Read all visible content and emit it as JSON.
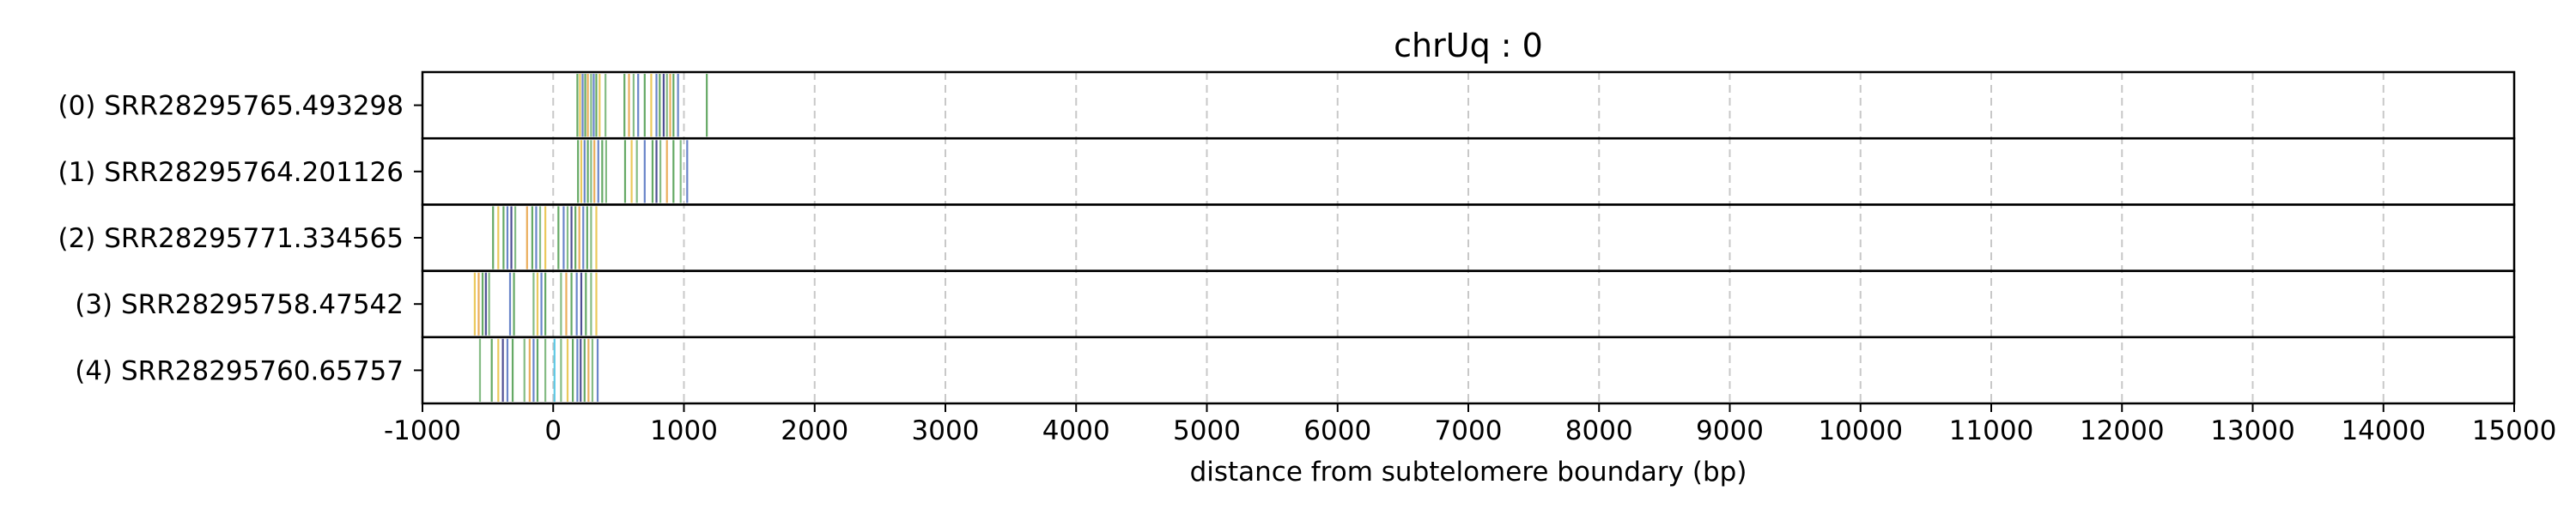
{
  "chart_data": {
    "type": "strip",
    "title": "chrUq : 0",
    "xlabel": "distance from subtelomere boundary (bp)",
    "ylabel": "",
    "xlim": [
      -1000,
      15000
    ],
    "xticks": [
      -1000,
      0,
      1000,
      2000,
      3000,
      4000,
      5000,
      6000,
      7000,
      8000,
      9000,
      10000,
      11000,
      12000,
      13000,
      14000,
      15000
    ],
    "xtick_labels": [
      "-1000",
      "0",
      "1000",
      "2000",
      "3000",
      "4000",
      "5000",
      "6000",
      "7000",
      "8000",
      "9000",
      "10000",
      "11000",
      "12000",
      "13000",
      "14000",
      "15000"
    ],
    "grid": "vertical dashed",
    "rows": [
      {
        "label": "(0) SRR28295765.493298",
        "marks": [
          {
            "x": 185,
            "color": "#4a9a4a"
          },
          {
            "x": 205,
            "color": "#e8c040"
          },
          {
            "x": 225,
            "color": "#5070c0"
          },
          {
            "x": 245,
            "color": "#4a9a4a"
          },
          {
            "x": 265,
            "color": "#e8a040"
          },
          {
            "x": 290,
            "color": "#70b070"
          },
          {
            "x": 310,
            "color": "#5070c0"
          },
          {
            "x": 330,
            "color": "#4a9a4a"
          },
          {
            "x": 355,
            "color": "#e8c040"
          },
          {
            "x": 400,
            "color": "#70b070"
          },
          {
            "x": 545,
            "color": "#4a9a4a"
          },
          {
            "x": 580,
            "color": "#e8a040"
          },
          {
            "x": 615,
            "color": "#70b070"
          },
          {
            "x": 650,
            "color": "#5070c0"
          },
          {
            "x": 700,
            "color": "#4a9a4a"
          },
          {
            "x": 750,
            "color": "#e8c040"
          },
          {
            "x": 790,
            "color": "#5070c0"
          },
          {
            "x": 815,
            "color": "#4a9a4a"
          },
          {
            "x": 845,
            "color": "#303080"
          },
          {
            "x": 870,
            "color": "#70b070"
          },
          {
            "x": 895,
            "color": "#e8a040"
          },
          {
            "x": 920,
            "color": "#4a9a4a"
          },
          {
            "x": 955,
            "color": "#5070c0"
          },
          {
            "x": 1175,
            "color": "#4a9a4a"
          }
        ]
      },
      {
        "label": "(1) SRR28295764.201126",
        "marks": [
          {
            "x": 190,
            "color": "#4a9a4a"
          },
          {
            "x": 215,
            "color": "#e8c040"
          },
          {
            "x": 240,
            "color": "#5070c0"
          },
          {
            "x": 265,
            "color": "#4a9a4a"
          },
          {
            "x": 290,
            "color": "#70b070"
          },
          {
            "x": 315,
            "color": "#e8a040"
          },
          {
            "x": 345,
            "color": "#5070c0"
          },
          {
            "x": 375,
            "color": "#4a9a4a"
          },
          {
            "x": 405,
            "color": "#70b070"
          },
          {
            "x": 550,
            "color": "#4a9a4a"
          },
          {
            "x": 600,
            "color": "#e8c040"
          },
          {
            "x": 640,
            "color": "#70b070"
          },
          {
            "x": 700,
            "color": "#5070c0"
          },
          {
            "x": 760,
            "color": "#4a9a4a"
          },
          {
            "x": 790,
            "color": "#303080"
          },
          {
            "x": 820,
            "color": "#70b070"
          },
          {
            "x": 870,
            "color": "#e8a040"
          },
          {
            "x": 920,
            "color": "#4a9a4a"
          },
          {
            "x": 975,
            "color": "#70b070"
          },
          {
            "x": 1025,
            "color": "#5070c0"
          }
        ]
      },
      {
        "label": "(2) SRR28295771.334565",
        "marks": [
          {
            "x": -460,
            "color": "#4a9a4a"
          },
          {
            "x": -420,
            "color": "#e8c040"
          },
          {
            "x": -380,
            "color": "#4a9a4a"
          },
          {
            "x": -350,
            "color": "#5070c0"
          },
          {
            "x": -320,
            "color": "#303080"
          },
          {
            "x": -290,
            "color": "#70b070"
          },
          {
            "x": -200,
            "color": "#e8a040"
          },
          {
            "x": -160,
            "color": "#4a9a4a"
          },
          {
            "x": -130,
            "color": "#5070c0"
          },
          {
            "x": -100,
            "color": "#70b070"
          },
          {
            "x": -60,
            "color": "#e8c040"
          },
          {
            "x": 40,
            "color": "#4a9a4a"
          },
          {
            "x": 80,
            "color": "#5070c0"
          },
          {
            "x": 110,
            "color": "#70b070"
          },
          {
            "x": 140,
            "color": "#303080"
          },
          {
            "x": 170,
            "color": "#4a9a4a"
          },
          {
            "x": 200,
            "color": "#e8a040"
          },
          {
            "x": 230,
            "color": "#5070c0"
          },
          {
            "x": 260,
            "color": "#4a9a4a"
          },
          {
            "x": 290,
            "color": "#70b070"
          },
          {
            "x": 330,
            "color": "#e8c040"
          }
        ]
      },
      {
        "label": "(3) SRR28295758.47542",
        "marks": [
          {
            "x": -600,
            "color": "#e8c040"
          },
          {
            "x": -570,
            "color": "#e8a040"
          },
          {
            "x": -540,
            "color": "#4a9a4a"
          },
          {
            "x": -515,
            "color": "#303080"
          },
          {
            "x": -490,
            "color": "#70b070"
          },
          {
            "x": -330,
            "color": "#5070c0"
          },
          {
            "x": -300,
            "color": "#4a9a4a"
          },
          {
            "x": -150,
            "color": "#70b070"
          },
          {
            "x": -120,
            "color": "#e8c040"
          },
          {
            "x": -90,
            "color": "#5070c0"
          },
          {
            "x": -60,
            "color": "#4a9a4a"
          },
          {
            "x": 60,
            "color": "#70b070"
          },
          {
            "x": 100,
            "color": "#e8a040"
          },
          {
            "x": 140,
            "color": "#4a9a4a"
          },
          {
            "x": 180,
            "color": "#5070c0"
          },
          {
            "x": 215,
            "color": "#303080"
          },
          {
            "x": 250,
            "color": "#4a9a4a"
          },
          {
            "x": 290,
            "color": "#70b070"
          },
          {
            "x": 330,
            "color": "#e8c040"
          }
        ]
      },
      {
        "label": "(4) SRR28295760.65757",
        "marks": [
          {
            "x": -560,
            "color": "#70b070"
          },
          {
            "x": -470,
            "color": "#4a9a4a"
          },
          {
            "x": -420,
            "color": "#e8c040"
          },
          {
            "x": -385,
            "color": "#303080"
          },
          {
            "x": -350,
            "color": "#5070c0"
          },
          {
            "x": -310,
            "color": "#4a9a4a"
          },
          {
            "x": -220,
            "color": "#70b070"
          },
          {
            "x": -180,
            "color": "#e8a040"
          },
          {
            "x": -150,
            "color": "#5070c0"
          },
          {
            "x": -120,
            "color": "#4a9a4a"
          },
          {
            "x": -60,
            "color": "#70b070"
          },
          {
            "x": 10,
            "color": "#40c0e0"
          },
          {
            "x": 60,
            "color": "#70b070"
          },
          {
            "x": 110,
            "color": "#e8c040"
          },
          {
            "x": 150,
            "color": "#4a9a4a"
          },
          {
            "x": 185,
            "color": "#5070c0"
          },
          {
            "x": 210,
            "color": "#303080"
          },
          {
            "x": 240,
            "color": "#4a9a4a"
          },
          {
            "x": 270,
            "color": "#e8a040"
          },
          {
            "x": 300,
            "color": "#70b070"
          },
          {
            "x": 340,
            "color": "#5070c0"
          }
        ]
      }
    ]
  }
}
